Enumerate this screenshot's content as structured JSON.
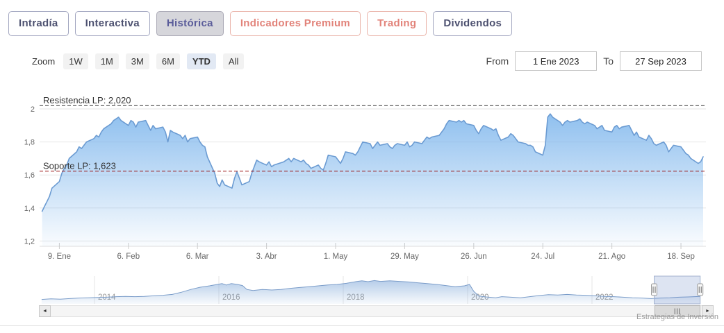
{
  "tabs": [
    {
      "id": "intradia",
      "label": "Intradía",
      "variant": "default",
      "active": false
    },
    {
      "id": "interactiva",
      "label": "Interactiva",
      "variant": "default",
      "active": false
    },
    {
      "id": "historica",
      "label": "Histórica",
      "variant": "default",
      "active": true
    },
    {
      "id": "indicadores-premium",
      "label": "Indicadores Premium",
      "variant": "premium",
      "active": false
    },
    {
      "id": "trading",
      "label": "Trading",
      "variant": "premium",
      "active": false
    },
    {
      "id": "dividendos",
      "label": "Dividendos",
      "variant": "default",
      "active": false
    }
  ],
  "toolbar": {
    "zoom_label": "Zoom",
    "zoom_buttons": [
      {
        "id": "1w",
        "label": "1W",
        "active": false
      },
      {
        "id": "1m",
        "label": "1M",
        "active": false
      },
      {
        "id": "3m",
        "label": "3M",
        "active": false
      },
      {
        "id": "6m",
        "label": "6M",
        "active": false
      },
      {
        "id": "ytd",
        "label": "YTD",
        "active": true
      },
      {
        "id": "all",
        "label": "All",
        "active": false
      }
    ],
    "from_label": "From",
    "from_value": "1 Ene 2023",
    "to_label": "To",
    "to_value": "27 Sep 2023"
  },
  "chart_data": {
    "type": "area",
    "title": "",
    "xlabel": "",
    "ylabel": "",
    "x_axis": {
      "unit": "day_of_year_2023",
      "range": [
        0,
        269
      ],
      "ticks": [
        {
          "d": 8,
          "label": "9. Ene"
        },
        {
          "d": 36,
          "label": "6. Feb"
        },
        {
          "d": 64,
          "label": "6. Mar"
        },
        {
          "d": 92,
          "label": "3. Abr"
        },
        {
          "d": 120,
          "label": "1. May"
        },
        {
          "d": 148,
          "label": "29. May"
        },
        {
          "d": 176,
          "label": "26. Jun"
        },
        {
          "d": 204,
          "label": "24. Jul"
        },
        {
          "d": 232,
          "label": "21. Ago"
        },
        {
          "d": 260,
          "label": "18. Sep"
        }
      ]
    },
    "y_axis": {
      "ticks": [
        {
          "v": 2.0,
          "label": "2"
        },
        {
          "v": 1.8,
          "label": "1,8"
        },
        {
          "v": 1.6,
          "label": "1,6"
        },
        {
          "v": 1.4,
          "label": "1,4"
        },
        {
          "v": 1.2,
          "label": "1,2"
        }
      ]
    },
    "annotations": [
      {
        "id": "resistencia",
        "label": "Resistencia LP: 2,020",
        "value": 2.02,
        "line_color": "#333333"
      },
      {
        "id": "soporte",
        "label": "Soporte LP: 1,623",
        "value": 1.623,
        "line_color": "#991414"
      }
    ],
    "series": [
      {
        "name": "precio YTD 2023",
        "points": [
          [
            1,
            1.38
          ],
          [
            2,
            1.41
          ],
          [
            3,
            1.44
          ],
          [
            4,
            1.47
          ],
          [
            5,
            1.52
          ],
          [
            8,
            1.56
          ],
          [
            9,
            1.61
          ],
          [
            10,
            1.64
          ],
          [
            11,
            1.66
          ],
          [
            12,
            1.7
          ],
          [
            15,
            1.74
          ],
          [
            16,
            1.77
          ],
          [
            17,
            1.76
          ],
          [
            18,
            1.78
          ],
          [
            19,
            1.8
          ],
          [
            22,
            1.82
          ],
          [
            23,
            1.84
          ],
          [
            24,
            1.83
          ],
          [
            25,
            1.86
          ],
          [
            26,
            1.88
          ],
          [
            29,
            1.91
          ],
          [
            30,
            1.93
          ],
          [
            31,
            1.94
          ],
          [
            32,
            1.95
          ],
          [
            33,
            1.93
          ],
          [
            36,
            1.9
          ],
          [
            37,
            1.93
          ],
          [
            38,
            1.92
          ],
          [
            39,
            1.89
          ],
          [
            40,
            1.92
          ],
          [
            43,
            1.93
          ],
          [
            44,
            1.9
          ],
          [
            45,
            1.87
          ],
          [
            46,
            1.9
          ],
          [
            47,
            1.88
          ],
          [
            50,
            1.89
          ],
          [
            51,
            1.86
          ],
          [
            52,
            1.8
          ],
          [
            53,
            1.87
          ],
          [
            54,
            1.86
          ],
          [
            57,
            1.84
          ],
          [
            58,
            1.82
          ],
          [
            59,
            1.84
          ],
          [
            60,
            1.8
          ],
          [
            61,
            1.82
          ],
          [
            64,
            1.83
          ],
          [
            65,
            1.8
          ],
          [
            66,
            1.78
          ],
          [
            67,
            1.77
          ],
          [
            68,
            1.71
          ],
          [
            71,
            1.61
          ],
          [
            72,
            1.55
          ],
          [
            73,
            1.53
          ],
          [
            74,
            1.57
          ],
          [
            75,
            1.54
          ],
          [
            78,
            1.52
          ],
          [
            79,
            1.58
          ],
          [
            80,
            1.62
          ],
          [
            81,
            1.58
          ],
          [
            82,
            1.54
          ],
          [
            85,
            1.56
          ],
          [
            86,
            1.61
          ],
          [
            87,
            1.65
          ],
          [
            88,
            1.69
          ],
          [
            89,
            1.68
          ],
          [
            92,
            1.66
          ],
          [
            93,
            1.68
          ],
          [
            94,
            1.65
          ],
          [
            95,
            1.66
          ],
          [
            99,
            1.68
          ],
          [
            100,
            1.69
          ],
          [
            101,
            1.7
          ],
          [
            102,
            1.68
          ],
          [
            103,
            1.7
          ],
          [
            106,
            1.68
          ],
          [
            107,
            1.69
          ],
          [
            108,
            1.67
          ],
          [
            109,
            1.66
          ],
          [
            110,
            1.64
          ],
          [
            113,
            1.66
          ],
          [
            114,
            1.64
          ],
          [
            115,
            1.63
          ],
          [
            116,
            1.67
          ],
          [
            117,
            1.72
          ],
          [
            120,
            1.71
          ],
          [
            121,
            1.69
          ],
          [
            122,
            1.67
          ],
          [
            123,
            1.7
          ],
          [
            124,
            1.74
          ],
          [
            127,
            1.73
          ],
          [
            128,
            1.72
          ],
          [
            129,
            1.74
          ],
          [
            130,
            1.77
          ],
          [
            131,
            1.8
          ],
          [
            134,
            1.79
          ],
          [
            135,
            1.76
          ],
          [
            136,
            1.78
          ],
          [
            137,
            1.8
          ],
          [
            138,
            1.78
          ],
          [
            141,
            1.79
          ],
          [
            142,
            1.77
          ],
          [
            143,
            1.76
          ],
          [
            144,
            1.78
          ],
          [
            145,
            1.79
          ],
          [
            148,
            1.78
          ],
          [
            149,
            1.8
          ],
          [
            150,
            1.77
          ],
          [
            151,
            1.78
          ],
          [
            152,
            1.8
          ],
          [
            155,
            1.79
          ],
          [
            156,
            1.81
          ],
          [
            157,
            1.83
          ],
          [
            158,
            1.82
          ],
          [
            159,
            1.83
          ],
          [
            162,
            1.84
          ],
          [
            163,
            1.86
          ],
          [
            164,
            1.88
          ],
          [
            165,
            1.91
          ],
          [
            166,
            1.93
          ],
          [
            169,
            1.92
          ],
          [
            170,
            1.93
          ],
          [
            171,
            1.92
          ],
          [
            172,
            1.93
          ],
          [
            173,
            1.91
          ],
          [
            176,
            1.9
          ],
          [
            177,
            1.87
          ],
          [
            178,
            1.85
          ],
          [
            179,
            1.88
          ],
          [
            180,
            1.9
          ],
          [
            183,
            1.88
          ],
          [
            184,
            1.87
          ],
          [
            185,
            1.88
          ],
          [
            186,
            1.84
          ],
          [
            187,
            1.81
          ],
          [
            190,
            1.83
          ],
          [
            191,
            1.85
          ],
          [
            192,
            1.84
          ],
          [
            193,
            1.82
          ],
          [
            194,
            1.8
          ],
          [
            197,
            1.79
          ],
          [
            198,
            1.78
          ],
          [
            199,
            1.78
          ],
          [
            200,
            1.77
          ],
          [
            201,
            1.74
          ],
          [
            204,
            1.72
          ],
          [
            205,
            1.78
          ],
          [
            206,
            1.95
          ],
          [
            207,
            1.97
          ],
          [
            208,
            1.95
          ],
          [
            211,
            1.92
          ],
          [
            212,
            1.9
          ],
          [
            213,
            1.92
          ],
          [
            214,
            1.93
          ],
          [
            215,
            1.92
          ],
          [
            218,
            1.93
          ],
          [
            219,
            1.94
          ],
          [
            220,
            1.92
          ],
          [
            221,
            1.91
          ],
          [
            222,
            1.92
          ],
          [
            225,
            1.9
          ],
          [
            226,
            1.88
          ],
          [
            227,
            1.89
          ],
          [
            228,
            1.9
          ],
          [
            229,
            1.87
          ],
          [
            232,
            1.86
          ],
          [
            233,
            1.89
          ],
          [
            234,
            1.9
          ],
          [
            235,
            1.88
          ],
          [
            236,
            1.89
          ],
          [
            239,
            1.9
          ],
          [
            240,
            1.87
          ],
          [
            241,
            1.84
          ],
          [
            242,
            1.86
          ],
          [
            243,
            1.83
          ],
          [
            246,
            1.81
          ],
          [
            247,
            1.84
          ],
          [
            248,
            1.82
          ],
          [
            249,
            1.79
          ],
          [
            250,
            1.78
          ],
          [
            253,
            1.8
          ],
          [
            254,
            1.78
          ],
          [
            255,
            1.74
          ],
          [
            256,
            1.76
          ],
          [
            257,
            1.78
          ],
          [
            260,
            1.77
          ],
          [
            261,
            1.75
          ],
          [
            262,
            1.73
          ],
          [
            263,
            1.72
          ],
          [
            264,
            1.7
          ],
          [
            267,
            1.67
          ],
          [
            268,
            1.68
          ],
          [
            269,
            1.71
          ]
        ]
      }
    ],
    "colors": {
      "line": "#6b9bd2",
      "fill_top": "rgba(124,181,236,0.85)",
      "fill_bottom": "rgba(124,181,236,0.04)"
    }
  },
  "navigator": {
    "year_ticks": [
      {
        "year": 2014,
        "label": "2014"
      },
      {
        "year": 2016,
        "label": "2016"
      },
      {
        "year": 2018,
        "label": "2018"
      },
      {
        "year": 2020,
        "label": "2020"
      },
      {
        "year": 2022,
        "label": "2022"
      }
    ],
    "selection": {
      "from_year": 2023.0,
      "to_year": 2023.74
    },
    "series": {
      "name": "precio histórico 2013-2023",
      "points": [
        [
          2013.15,
          0.16
        ],
        [
          2013.3,
          0.18
        ],
        [
          2013.45,
          0.17
        ],
        [
          2013.6,
          0.19
        ],
        [
          2013.75,
          0.21
        ],
        [
          2013.9,
          0.22
        ],
        [
          2014.05,
          0.23
        ],
        [
          2014.2,
          0.24
        ],
        [
          2014.35,
          0.26
        ],
        [
          2014.5,
          0.27
        ],
        [
          2014.65,
          0.26
        ],
        [
          2014.8,
          0.27
        ],
        [
          2014.95,
          0.29
        ],
        [
          2015.1,
          0.31
        ],
        [
          2015.25,
          0.34
        ],
        [
          2015.4,
          0.42
        ],
        [
          2015.55,
          0.52
        ],
        [
          2015.7,
          0.6
        ],
        [
          2015.85,
          0.65
        ],
        [
          2015.95,
          0.69
        ],
        [
          2016.05,
          0.73
        ],
        [
          2016.12,
          0.68
        ],
        [
          2016.2,
          0.73
        ],
        [
          2016.3,
          0.7
        ],
        [
          2016.38,
          0.66
        ],
        [
          2016.45,
          0.52
        ],
        [
          2016.55,
          0.48
        ],
        [
          2016.7,
          0.52
        ],
        [
          2016.85,
          0.5
        ],
        [
          2017.0,
          0.52
        ],
        [
          2017.15,
          0.56
        ],
        [
          2017.3,
          0.59
        ],
        [
          2017.45,
          0.62
        ],
        [
          2017.6,
          0.65
        ],
        [
          2017.75,
          0.68
        ],
        [
          2017.9,
          0.7
        ],
        [
          2018.05,
          0.74
        ],
        [
          2018.2,
          0.8
        ],
        [
          2018.3,
          0.83
        ],
        [
          2018.4,
          0.8
        ],
        [
          2018.5,
          0.84
        ],
        [
          2018.6,
          0.81
        ],
        [
          2018.75,
          0.83
        ],
        [
          2018.9,
          0.81
        ],
        [
          2019.05,
          0.79
        ],
        [
          2019.2,
          0.76
        ],
        [
          2019.35,
          0.73
        ],
        [
          2019.5,
          0.7
        ],
        [
          2019.65,
          0.66
        ],
        [
          2019.8,
          0.62
        ],
        [
          2019.95,
          0.65
        ],
        [
          2020.03,
          0.7
        ],
        [
          2020.1,
          0.45
        ],
        [
          2020.18,
          0.28
        ],
        [
          2020.3,
          0.25
        ],
        [
          2020.45,
          0.22
        ],
        [
          2020.55,
          0.26
        ],
        [
          2020.7,
          0.24
        ],
        [
          2020.85,
          0.22
        ],
        [
          2021.0,
          0.26
        ],
        [
          2021.15,
          0.3
        ],
        [
          2021.3,
          0.33
        ],
        [
          2021.45,
          0.32
        ],
        [
          2021.6,
          0.34
        ],
        [
          2021.75,
          0.32
        ],
        [
          2021.9,
          0.31
        ],
        [
          2022.05,
          0.29
        ],
        [
          2022.2,
          0.27
        ],
        [
          2022.35,
          0.26
        ],
        [
          2022.5,
          0.24
        ],
        [
          2022.65,
          0.22
        ],
        [
          2022.8,
          0.21
        ],
        [
          2022.95,
          0.19
        ],
        [
          2023.1,
          0.21
        ],
        [
          2023.25,
          0.22
        ],
        [
          2023.4,
          0.24
        ],
        [
          2023.55,
          0.25
        ],
        [
          2023.74,
          0.27
        ]
      ]
    },
    "colors": {
      "line": "#7a9cc9",
      "mask": "rgba(102,133,194,0.22)",
      "fill_top": "rgba(124,165,215,0.55)",
      "fill_bottom": "rgba(124,165,215,0.06)"
    }
  },
  "scrollbar": {
    "left_arrow": "◄",
    "right_arrow": "►",
    "grip": "|||"
  },
  "footer": {
    "credit": "Estrategias de Inversión"
  }
}
